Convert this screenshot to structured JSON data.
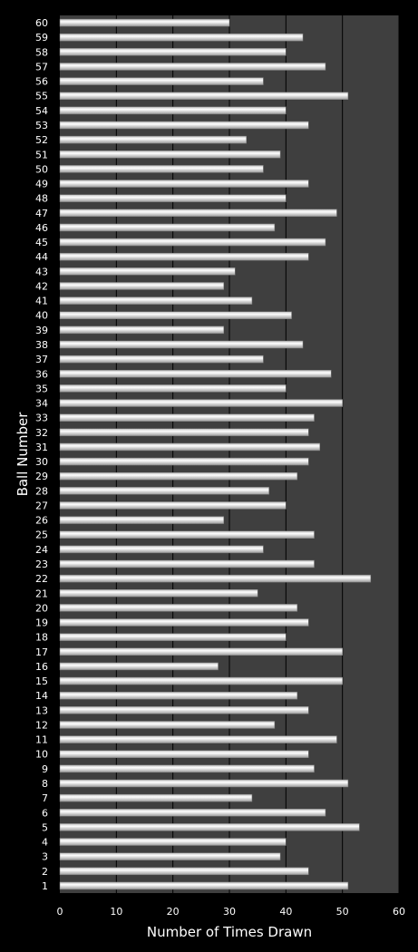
{
  "chart_data": {
    "type": "bar",
    "orientation": "horizontal",
    "xlabel": "Number of Times Drawn",
    "ylabel": "Ball Number",
    "xlim": [
      0,
      60
    ],
    "xticks": [
      0,
      10,
      20,
      30,
      40,
      50,
      60
    ],
    "grid": true,
    "legend": "none",
    "colors": {
      "background": "#000000",
      "plot_area": "#3f3f3f",
      "bar": "#e6e6e6",
      "grid": "#000000",
      "text": "#ffffff"
    },
    "categories": [
      "1",
      "2",
      "3",
      "4",
      "5",
      "6",
      "7",
      "8",
      "9",
      "10",
      "11",
      "12",
      "13",
      "14",
      "15",
      "16",
      "17",
      "18",
      "19",
      "20",
      "21",
      "22",
      "23",
      "24",
      "25",
      "26",
      "27",
      "28",
      "29",
      "30",
      "31",
      "32",
      "33",
      "34",
      "35",
      "36",
      "37",
      "38",
      "39",
      "40",
      "41",
      "42",
      "43",
      "44",
      "45",
      "46",
      "47",
      "48",
      "49",
      "50",
      "51",
      "52",
      "53",
      "54",
      "55",
      "56",
      "57",
      "58",
      "59",
      "60"
    ],
    "values": [
      51,
      44,
      39,
      40,
      53,
      47,
      34,
      51,
      45,
      44,
      49,
      38,
      44,
      42,
      50,
      28,
      50,
      40,
      44,
      42,
      35,
      55,
      45,
      36,
      45,
      29,
      40,
      37,
      42,
      44,
      46,
      44,
      45,
      50,
      40,
      48,
      36,
      43,
      29,
      41,
      34,
      29,
      31,
      44,
      47,
      38,
      49,
      40,
      44,
      36,
      39,
      33,
      44,
      40,
      51,
      36,
      47,
      40,
      43,
      30
    ]
  }
}
